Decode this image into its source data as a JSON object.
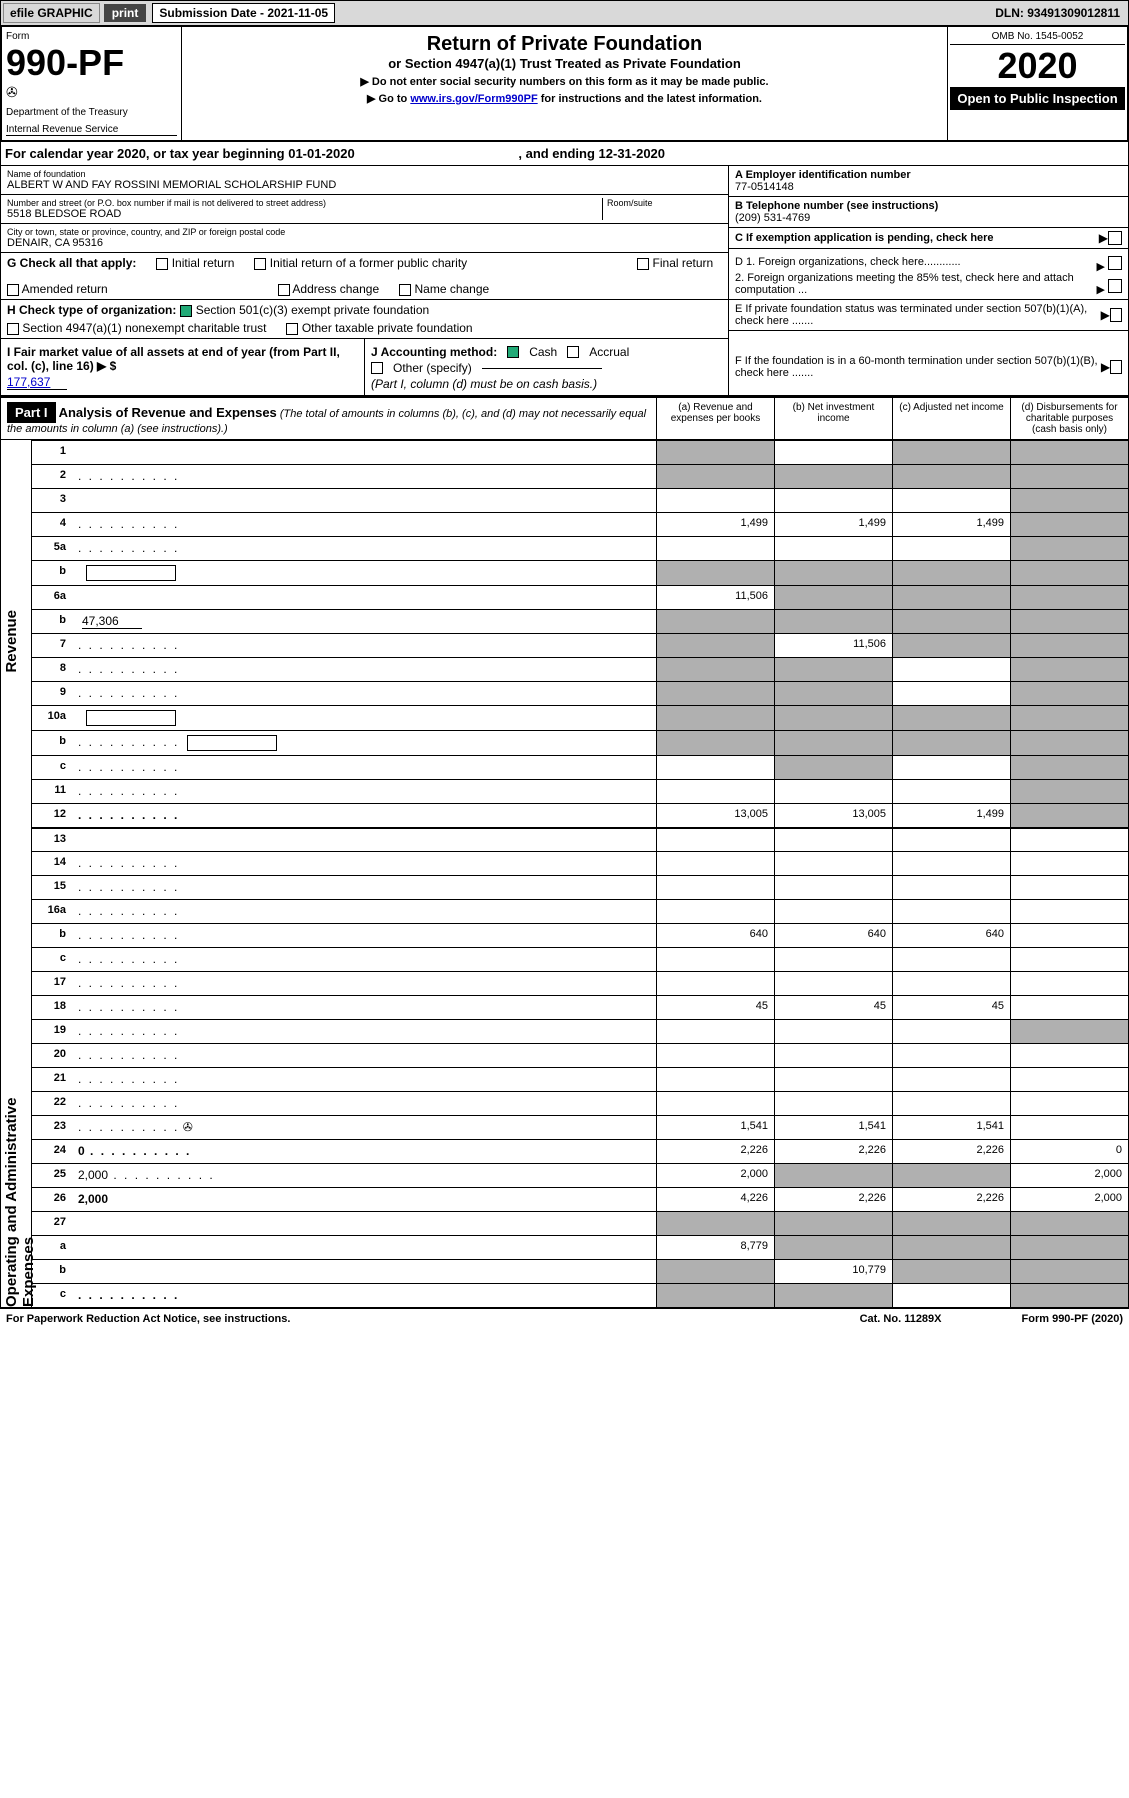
{
  "topbar": {
    "efile": "efile GRAPHIC",
    "print": "print",
    "sub_date_label": "Submission Date - 2021-11-05",
    "dln": "DLN: 93491309012811"
  },
  "header": {
    "form_label": "Form",
    "form_num": "990-PF",
    "dept": "Department of the Treasury",
    "irs": "Internal Revenue Service",
    "title": "Return of Private Foundation",
    "subtitle": "or Section 4947(a)(1) Trust Treated as Private Foundation",
    "instr1": "▶ Do not enter social security numbers on this form as it may be made public.",
    "instr2_pre": "▶ Go to ",
    "instr2_link": "www.irs.gov/Form990PF",
    "instr2_post": " for instructions and the latest information.",
    "omb": "OMB No. 1545-0052",
    "year": "2020",
    "open_pub": "Open to Public Inspection"
  },
  "cal_year": {
    "text": "For calendar year 2020, or tax year beginning 01-01-2020",
    "ending": ", and ending 12-31-2020"
  },
  "foundation": {
    "name_label": "Name of foundation",
    "name": "ALBERT W AND FAY ROSSINI MEMORIAL SCHOLARSHIP FUND",
    "addr_label": "Number and street (or P.O. box number if mail is not delivered to street address)",
    "room_label": "Room/suite",
    "addr": "5518 BLEDSOE ROAD",
    "city_label": "City or town, state or province, country, and ZIP or foreign postal code",
    "city": "DENAIR, CA  95316",
    "ein_label": "A Employer identification number",
    "ein": "77-0514148",
    "phone_label": "B Telephone number (see instructions)",
    "phone": "(209) 531-4769",
    "c_label": "C If exemption application is pending, check here"
  },
  "checks": {
    "g_label": "G Check all that apply:",
    "initial": "Initial return",
    "initial_former": "Initial return of a former public charity",
    "final": "Final return",
    "amended": "Amended return",
    "addr_change": "Address change",
    "name_change": "Name change",
    "h_label": "H Check type of organization:",
    "h_501c3": "Section 501(c)(3) exempt private foundation",
    "h_4947": "Section 4947(a)(1) nonexempt charitable trust",
    "h_other": "Other taxable private foundation",
    "i_label": "I Fair market value of all assets at end of year (from Part II, col. (c), line 16) ▶ $",
    "i_value": "177,637",
    "j_label": "J Accounting method:",
    "j_cash": "Cash",
    "j_accrual": "Accrual",
    "j_other": "Other (specify)",
    "j_note": "(Part I, column (d) must be on cash basis.)",
    "d1": "D 1. Foreign organizations, check here............",
    "d2": "2. Foreign organizations meeting the 85% test, check here and attach computation ...",
    "e_label": "E  If private foundation status was terminated under section 507(b)(1)(A), check here .......",
    "f_label": "F  If the foundation is in a 60-month termination under section 507(b)(1)(B), check here ......."
  },
  "part1": {
    "label": "Part I",
    "title": "Analysis of Revenue and Expenses",
    "note": "(The total of amounts in columns (b), (c), and (d) may not necessarily equal the amounts in column (a) (see instructions).)",
    "col_a": "(a) Revenue and expenses per books",
    "col_b": "(b) Net investment income",
    "col_c": "(c) Adjusted net income",
    "col_d": "(d) Disbursements for charitable purposes (cash basis only)"
  },
  "sides": {
    "revenue": "Revenue",
    "expenses": "Operating and Administrative Expenses"
  },
  "rows": [
    {
      "n": "1",
      "d": "",
      "a": "",
      "b": "",
      "c": "",
      "sa": true,
      "sc": true,
      "sd": true
    },
    {
      "n": "2",
      "d": "",
      "dots": true,
      "a": "",
      "b": "",
      "c": "",
      "sa": true,
      "sb": true,
      "sc": true,
      "sd": true
    },
    {
      "n": "3",
      "d": "",
      "a": "",
      "b": "",
      "c": "",
      "sd": true
    },
    {
      "n": "4",
      "d": "",
      "dots": true,
      "a": "1,499",
      "b": "1,499",
      "c": "1,499",
      "sd": true
    },
    {
      "n": "5a",
      "d": "",
      "dots": true,
      "a": "",
      "b": "",
      "c": "",
      "sd": true
    },
    {
      "n": "b",
      "d": "",
      "inline": true,
      "a": "",
      "b": "",
      "c": "",
      "sa": true,
      "sb": true,
      "sc": true,
      "sd": true
    },
    {
      "n": "6a",
      "d": "",
      "a": "11,506",
      "b": "",
      "c": "",
      "sb": true,
      "sc": true,
      "sd": true
    },
    {
      "n": "b",
      "d": "",
      "inline_val": "47,306",
      "a": "",
      "b": "",
      "c": "",
      "sa": true,
      "sb": true,
      "sc": true,
      "sd": true
    },
    {
      "n": "7",
      "d": "",
      "dots": true,
      "a": "",
      "b": "11,506",
      "c": "",
      "sa": true,
      "sc": true,
      "sd": true
    },
    {
      "n": "8",
      "d": "",
      "dots": true,
      "a": "",
      "b": "",
      "c": "",
      "sa": true,
      "sb": true,
      "sd": true
    },
    {
      "n": "9",
      "d": "",
      "dots": true,
      "a": "",
      "b": "",
      "c": "",
      "sa": true,
      "sb": true,
      "sd": true
    },
    {
      "n": "10a",
      "d": "",
      "inline": true,
      "a": "",
      "b": "",
      "c": "",
      "sa": true,
      "sb": true,
      "sc": true,
      "sd": true
    },
    {
      "n": "b",
      "d": "",
      "dots": true,
      "inline": true,
      "a": "",
      "b": "",
      "c": "",
      "sa": true,
      "sb": true,
      "sc": true,
      "sd": true
    },
    {
      "n": "c",
      "d": "",
      "dots": true,
      "a": "",
      "b": "",
      "c": "",
      "sb": true,
      "sd": true
    },
    {
      "n": "11",
      "d": "",
      "dots": true,
      "a": "",
      "b": "",
      "c": "",
      "sd": true
    },
    {
      "n": "12",
      "d": "",
      "dots": true,
      "bold": true,
      "a": "13,005",
      "b": "13,005",
      "c": "1,499",
      "sd": true
    },
    {
      "n": "13",
      "d": "",
      "a": "",
      "b": "",
      "c": ""
    },
    {
      "n": "14",
      "d": "",
      "dots": true,
      "a": "",
      "b": "",
      "c": ""
    },
    {
      "n": "15",
      "d": "",
      "dots": true,
      "a": "",
      "b": "",
      "c": ""
    },
    {
      "n": "16a",
      "d": "",
      "dots": true,
      "a": "",
      "b": "",
      "c": ""
    },
    {
      "n": "b",
      "d": "",
      "dots": true,
      "a": "640",
      "b": "640",
      "c": "640"
    },
    {
      "n": "c",
      "d": "",
      "dots": true,
      "a": "",
      "b": "",
      "c": ""
    },
    {
      "n": "17",
      "d": "",
      "dots": true,
      "a": "",
      "b": "",
      "c": ""
    },
    {
      "n": "18",
      "d": "",
      "dots": true,
      "a": "45",
      "b": "45",
      "c": "45"
    },
    {
      "n": "19",
      "d": "",
      "dots": true,
      "a": "",
      "b": "",
      "c": "",
      "sd": true
    },
    {
      "n": "20",
      "d": "",
      "dots": true,
      "a": "",
      "b": "",
      "c": ""
    },
    {
      "n": "21",
      "d": "",
      "dots": true,
      "a": "",
      "b": "",
      "c": ""
    },
    {
      "n": "22",
      "d": "",
      "dots": true,
      "a": "",
      "b": "",
      "c": ""
    },
    {
      "n": "23",
      "d": "",
      "dots": true,
      "icon": true,
      "a": "1,541",
      "b": "1,541",
      "c": "1,541"
    },
    {
      "n": "24",
      "d": "0",
      "dots": true,
      "bold": true,
      "a": "2,226",
      "b": "2,226",
      "c": "2,226"
    },
    {
      "n": "25",
      "d": "2,000",
      "dots": true,
      "a": "2,000",
      "b": "",
      "c": "",
      "sb": true,
      "sc": true
    },
    {
      "n": "26",
      "d": "2,000",
      "bold": true,
      "a": "4,226",
      "b": "2,226",
      "c": "2,226"
    },
    {
      "n": "27",
      "d": "",
      "a": "",
      "b": "",
      "c": "",
      "sa": true,
      "sb": true,
      "sc": true,
      "sd": true
    },
    {
      "n": "a",
      "d": "",
      "bold": true,
      "a": "8,779",
      "b": "",
      "c": "",
      "sb": true,
      "sc": true,
      "sd": true
    },
    {
      "n": "b",
      "d": "",
      "bold": true,
      "a": "",
      "b": "10,779",
      "c": "",
      "sa": true,
      "sc": true,
      "sd": true
    },
    {
      "n": "c",
      "d": "",
      "dots": true,
      "bold": true,
      "a": "",
      "b": "",
      "c": "",
      "sa": true,
      "sb": true,
      "sd": true
    }
  ],
  "footer": {
    "left": "For Paperwork Reduction Act Notice, see instructions.",
    "mid": "Cat. No. 11289X",
    "right": "Form 990-PF (2020)"
  },
  "colors": {
    "checkbox_on": "#22aa77",
    "link": "#0000cc",
    "shade": "#b0b0b0"
  }
}
